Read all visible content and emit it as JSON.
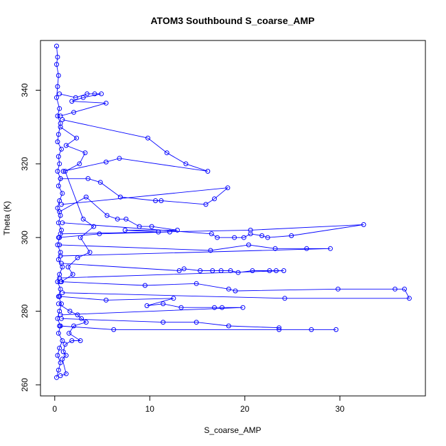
{
  "chart_data": {
    "type": "line",
    "title": "ATOM3 Southbound S_coarse_AMP",
    "xlabel": "S_coarse_AMP",
    "ylabel": "Theta (K)",
    "xlim": [
      -1.5,
      39
    ],
    "ylim": [
      257,
      353.5
    ],
    "xticks": [
      0,
      10,
      20,
      30
    ],
    "yticks": [
      260,
      280,
      300,
      320,
      340
    ],
    "grid": false,
    "legend": "none",
    "marker": "open-circle",
    "color": "#0000ff",
    "series": [
      {
        "values": [
          [
            0.2,
            352
          ],
          [
            0.3,
            349
          ],
          [
            0.2,
            347
          ],
          [
            0.4,
            344
          ],
          [
            0.3,
            341
          ],
          [
            0.2,
            338
          ],
          [
            0.5,
            335
          ],
          [
            0.3,
            333
          ],
          [
            0.6,
            331
          ],
          [
            0.4,
            328
          ],
          [
            0.3,
            326
          ],
          [
            0.7,
            324
          ],
          [
            0.4,
            322
          ],
          [
            0.5,
            320
          ],
          [
            0.3,
            318
          ],
          [
            0.6,
            316
          ],
          [
            0.4,
            314
          ],
          [
            0.8,
            312
          ],
          [
            0.5,
            310
          ],
          [
            0.3,
            308
          ],
          [
            0.6,
            306
          ],
          [
            0.4,
            304
          ],
          [
            0.7,
            302
          ],
          [
            0.5,
            300
          ],
          [
            0.3,
            298
          ],
          [
            0.6,
            296
          ],
          [
            0.4,
            294
          ],
          [
            0.8,
            292
          ],
          [
            0.5,
            290
          ],
          [
            0.3,
            288
          ],
          [
            0.6,
            286
          ],
          [
            0.4,
            284
          ],
          [
            0.7,
            282
          ],
          [
            0.5,
            280
          ],
          [
            0.3,
            278
          ],
          [
            0.6,
            276
          ],
          [
            0.4,
            274
          ],
          [
            0.8,
            272
          ],
          [
            0.5,
            270
          ],
          [
            0.3,
            268
          ],
          [
            0.6,
            266
          ],
          [
            0.4,
            264
          ],
          [
            0.2,
            262
          ]
        ]
      },
      {
        "values": [
          [
            0.5,
            339
          ],
          [
            2.2,
            338
          ],
          [
            3.4,
            339
          ],
          [
            4.2,
            339
          ],
          [
            4.9,
            339
          ],
          [
            3.0,
            338
          ],
          [
            1.8,
            337
          ],
          [
            5.4,
            336.5
          ],
          [
            2.0,
            334
          ],
          [
            0.6,
            333
          ]
        ]
      },
      {
        "values": [
          [
            0.8,
            332
          ],
          [
            9.8,
            327
          ],
          [
            11.8,
            323
          ],
          [
            13.8,
            320
          ],
          [
            16.1,
            318
          ],
          [
            6.8,
            321.5
          ],
          [
            5.4,
            320.5
          ],
          [
            0.9,
            318
          ]
        ]
      },
      {
        "values": [
          [
            0.6,
            316
          ],
          [
            3.5,
            316
          ],
          [
            4.8,
            315
          ],
          [
            6.9,
            311
          ],
          [
            10.6,
            310
          ],
          [
            11.2,
            310
          ],
          [
            15.9,
            309
          ],
          [
            16.8,
            310.5
          ],
          [
            18.2,
            313.5
          ],
          [
            0.7,
            309
          ]
        ]
      },
      {
        "values": [
          [
            0.5,
            307
          ],
          [
            3.3,
            311
          ],
          [
            5.5,
            306
          ],
          [
            6.6,
            305
          ],
          [
            7.5,
            305
          ],
          [
            8.9,
            303
          ],
          [
            10.2,
            303
          ],
          [
            12.9,
            302
          ],
          [
            7.4,
            302
          ],
          [
            10.9,
            301.5
          ],
          [
            12.1,
            301.5
          ],
          [
            4.7,
            301
          ],
          [
            0.4,
            300
          ]
        ]
      },
      {
        "values": [
          [
            0.8,
            304
          ],
          [
            16.5,
            301
          ],
          [
            17.1,
            300
          ],
          [
            18.9,
            300
          ],
          [
            19.9,
            300
          ],
          [
            20.6,
            301
          ],
          [
            21.8,
            300.5
          ],
          [
            22.4,
            300
          ],
          [
            24.9,
            300.5
          ],
          [
            32.5,
            303.5
          ],
          [
            20.6,
            302
          ],
          [
            0.6,
            301
          ]
        ]
      },
      {
        "values": [
          [
            0.5,
            298
          ],
          [
            16.4,
            296.5
          ],
          [
            20.4,
            298
          ],
          [
            23.2,
            297
          ],
          [
            26.5,
            297
          ],
          [
            29.0,
            297
          ],
          [
            0.6,
            295
          ]
        ]
      },
      {
        "values": [
          [
            0.7,
            293
          ],
          [
            13.1,
            291
          ],
          [
            13.6,
            291.5
          ],
          [
            15.3,
            291
          ],
          [
            16.6,
            291
          ],
          [
            17.5,
            291
          ],
          [
            18.5,
            291
          ],
          [
            19.3,
            290.5
          ],
          [
            20.8,
            291
          ],
          [
            22.6,
            291
          ],
          [
            23.3,
            291
          ],
          [
            24.1,
            291
          ],
          [
            0.5,
            289
          ]
        ]
      },
      {
        "values": [
          [
            0.6,
            288
          ],
          [
            9.5,
            287
          ],
          [
            14.9,
            287.5
          ],
          [
            18.3,
            286
          ],
          [
            19.0,
            285.5
          ],
          [
            29.8,
            286
          ],
          [
            35.8,
            286
          ],
          [
            36.8,
            286
          ],
          [
            37.3,
            283.5
          ],
          [
            24.2,
            283.5
          ],
          [
            0.8,
            285
          ]
        ]
      },
      {
        "values": [
          [
            0.5,
            284
          ],
          [
            5.4,
            283
          ],
          [
            12.5,
            283.5
          ],
          [
            9.7,
            281.5
          ],
          [
            11.4,
            282
          ],
          [
            13.3,
            281
          ],
          [
            16.8,
            281
          ],
          [
            17.6,
            281
          ],
          [
            19.8,
            281
          ],
          [
            0.6,
            279
          ]
        ]
      },
      {
        "values": [
          [
            0.7,
            278
          ],
          [
            11.4,
            277
          ],
          [
            14.9,
            277
          ],
          [
            18.3,
            276
          ],
          [
            23.6,
            275.5
          ],
          [
            23.6,
            275
          ],
          [
            27.0,
            275
          ],
          [
            29.6,
            275
          ],
          [
            6.2,
            275
          ],
          [
            0.5,
            276
          ]
        ]
      },
      {
        "values": [
          [
            0.4,
            282
          ],
          [
            1.6,
            280
          ],
          [
            2.4,
            279
          ],
          [
            2.8,
            278
          ],
          [
            3.3,
            277
          ],
          [
            2.0,
            276
          ],
          [
            1.5,
            274
          ],
          [
            2.7,
            272
          ],
          [
            1.8,
            272
          ],
          [
            1.1,
            271
          ],
          [
            0.9,
            269
          ],
          [
            1.2,
            268
          ],
          [
            0.8,
            267
          ],
          [
            1.2,
            263
          ],
          [
            0.6,
            262.5
          ]
        ]
      },
      {
        "values": [
          [
            0.6,
            330
          ],
          [
            2.3,
            327
          ],
          [
            1.2,
            325
          ],
          [
            3.2,
            323
          ],
          [
            2.6,
            320
          ],
          [
            1.1,
            318
          ],
          [
            3.0,
            305
          ],
          [
            4.1,
            303
          ],
          [
            2.7,
            300
          ],
          [
            3.7,
            296
          ],
          [
            2.4,
            294.5
          ],
          [
            1.4,
            292
          ],
          [
            1.9,
            290
          ],
          [
            0.7,
            288
          ]
        ]
      }
    ]
  }
}
